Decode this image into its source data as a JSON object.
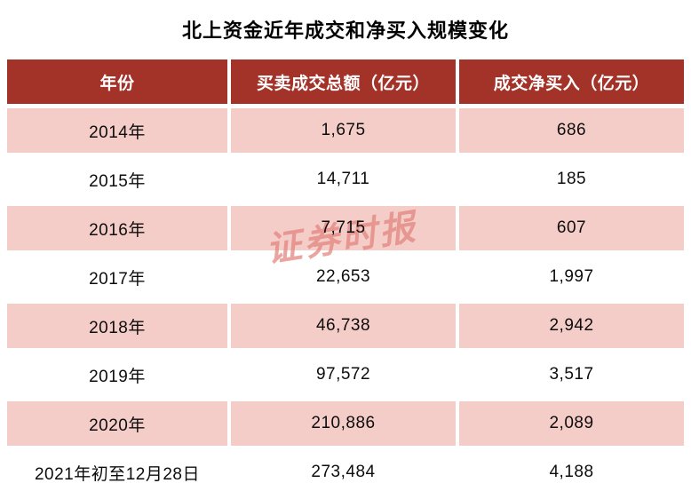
{
  "title": "北上资金近年成交和净买入规模变化",
  "watermark": {
    "text": "证券时报"
  },
  "colors": {
    "header_bg": "#A33229",
    "alt_row_bg": "#F5CDC8",
    "header_text": "#FFFFFF",
    "body_text": "#0D0D0D",
    "watermark": "#E2837C"
  },
  "table": {
    "columns": [
      "年份",
      "买卖成交总额（亿元）",
      "成交净买入（亿元）"
    ],
    "rows": [
      {
        "year": "2014年",
        "total": "1,675",
        "net": "686"
      },
      {
        "year": "2015年",
        "total": "14,711",
        "net": "185"
      },
      {
        "year": "2016年",
        "total": "7,715",
        "net": "607"
      },
      {
        "year": "2017年",
        "total": "22,653",
        "net": "1,997"
      },
      {
        "year": "2018年",
        "total": "46,738",
        "net": "2,942"
      },
      {
        "year": "2019年",
        "total": "97,572",
        "net": "3,517"
      },
      {
        "year": "2020年",
        "total": "210,886",
        "net": "2,089"
      },
      {
        "year": "2021年初至12月28日",
        "total": "273,484",
        "net": "4,188"
      }
    ]
  },
  "chart_data": {
    "type": "table",
    "title": "北上资金近年成交和净买入规模变化",
    "categories": [
      "2014年",
      "2015年",
      "2016年",
      "2017年",
      "2018年",
      "2019年",
      "2020年",
      "2021年初至12月28日"
    ],
    "series": [
      {
        "name": "买卖成交总额（亿元）",
        "values": [
          1675,
          14711,
          7715,
          22653,
          46738,
          97572,
          210886,
          273484
        ]
      },
      {
        "name": "成交净买入（亿元）",
        "values": [
          686,
          185,
          607,
          1997,
          2942,
          3517,
          2089,
          4188
        ]
      }
    ]
  }
}
